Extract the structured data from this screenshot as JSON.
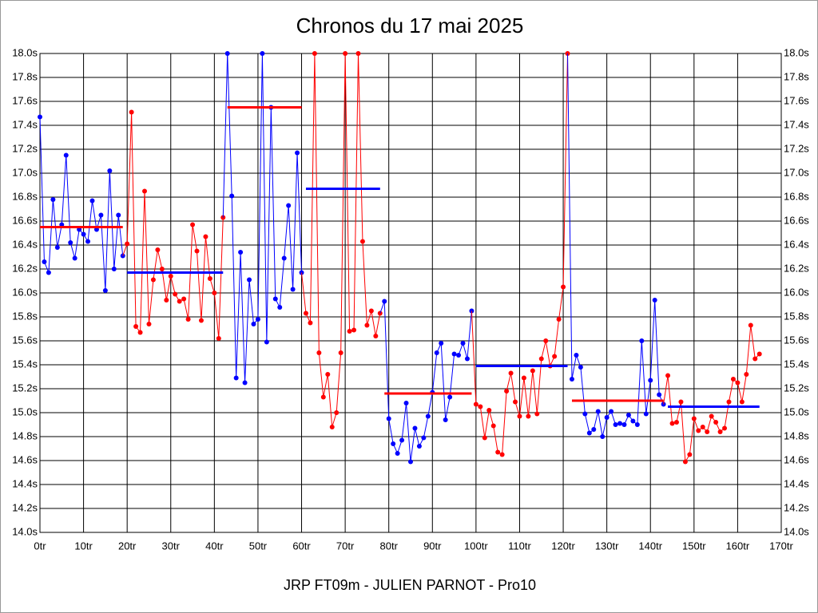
{
  "chart_data": {
    "type": "line",
    "title": "Chronos du 17 mai 2025",
    "footer": "JRP FT09m - JULIEN PARNOT - Pro10",
    "xlim": [
      0,
      170
    ],
    "xticks": [
      {
        "value": 0,
        "label": "0tr"
      },
      {
        "value": 10,
        "label": "10tr"
      },
      {
        "value": 20,
        "label": "20tr"
      },
      {
        "value": 30,
        "label": "30tr"
      },
      {
        "value": 40,
        "label": "40tr"
      },
      {
        "value": 50,
        "label": "50tr"
      },
      {
        "value": 60,
        "label": "60tr"
      },
      {
        "value": 70,
        "label": "70tr"
      },
      {
        "value": 80,
        "label": "80tr"
      },
      {
        "value": 90,
        "label": "90tr"
      },
      {
        "value": 100,
        "label": "100tr"
      },
      {
        "value": 110,
        "label": "110tr"
      },
      {
        "value": 120,
        "label": "120tr"
      },
      {
        "value": 130,
        "label": "130tr"
      },
      {
        "value": 140,
        "label": "140tr"
      },
      {
        "value": 150,
        "label": "150tr"
      },
      {
        "value": 160,
        "label": "160tr"
      },
      {
        "value": 170,
        "label": "170tr"
      }
    ],
    "ylim": [
      14,
      18
    ],
    "yticks": [
      {
        "value": 14,
        "label": "14.0s"
      },
      {
        "value": 14.2,
        "label": "14.2s"
      },
      {
        "value": 14.4,
        "label": "14.4s"
      },
      {
        "value": 14.6,
        "label": "14.6s"
      },
      {
        "value": 14.8,
        "label": "14.8s"
      },
      {
        "value": 15,
        "label": "15.0s"
      },
      {
        "value": 15.2,
        "label": "15.2s"
      },
      {
        "value": 15.4,
        "label": "15.4s"
      },
      {
        "value": 15.6,
        "label": "15.6s"
      },
      {
        "value": 15.8,
        "label": "15.8s"
      },
      {
        "value": 16,
        "label": "16.0s"
      },
      {
        "value": 16.2,
        "label": "16.2s"
      },
      {
        "value": 16.4,
        "label": "16.4s"
      },
      {
        "value": 16.6,
        "label": "16.6s"
      },
      {
        "value": 16.8,
        "label": "16.8s"
      },
      {
        "value": 17,
        "label": "17.0s"
      },
      {
        "value": 17.2,
        "label": "17.2s"
      },
      {
        "value": 17.4,
        "label": "17.4s"
      },
      {
        "value": 17.6,
        "label": "17.6s"
      },
      {
        "value": 17.8,
        "label": "17.8s"
      },
      {
        "value": 18,
        "label": "18.0s"
      }
    ],
    "grid": true,
    "series": [
      {
        "color": "#0000ff",
        "x": [
          0,
          1,
          2,
          3,
          4,
          5,
          6,
          7,
          8,
          9,
          10,
          11,
          12,
          13,
          14,
          15,
          16,
          17,
          18,
          19
        ],
        "values": [
          17.47,
          16.26,
          16.17,
          16.78,
          16.38,
          16.57,
          17.15,
          16.42,
          16.29,
          16.53,
          16.49,
          16.43,
          16.77,
          16.53,
          16.65,
          16.02,
          17.02,
          16.2,
          16.65,
          16.31
        ]
      },
      {
        "color": "#ff0000",
        "x": [
          20,
          21,
          22,
          23,
          24,
          25,
          26,
          27,
          28,
          29,
          30,
          31,
          32,
          33,
          34,
          35,
          36,
          37,
          38,
          39,
          40,
          41,
          42
        ],
        "values": [
          16.41,
          17.51,
          15.72,
          15.67,
          16.85,
          15.74,
          16.11,
          16.36,
          16.2,
          15.94,
          16.14,
          15.99,
          15.93,
          15.95,
          15.78,
          16.57,
          16.35,
          15.77,
          16.47,
          16.12,
          16.0,
          15.62,
          16.63
        ]
      },
      {
        "color": "#0000ff",
        "x": [
          43,
          44,
          45,
          46,
          47,
          48,
          49,
          50,
          51,
          52,
          53,
          54,
          55,
          56,
          57,
          58,
          59,
          60
        ],
        "values": [
          18.0,
          16.81,
          15.29,
          16.34,
          15.25,
          16.11,
          15.74,
          15.78,
          18.0,
          15.59,
          17.55,
          15.95,
          15.88,
          16.29,
          16.73,
          16.03,
          17.17,
          16.17
        ]
      },
      {
        "color": "#ff0000",
        "x": [
          61,
          62,
          63,
          64,
          65,
          66,
          67,
          68,
          69,
          70,
          71,
          72,
          73,
          74,
          75,
          76,
          77,
          78
        ],
        "values": [
          15.83,
          15.75,
          18.0,
          15.5,
          15.13,
          15.32,
          14.88,
          15.0,
          15.5,
          18.0,
          15.68,
          15.69,
          18.0,
          16.43,
          15.73,
          15.85,
          15.64,
          15.83
        ]
      },
      {
        "color": "#0000ff",
        "x": [
          79,
          80,
          81,
          82,
          83,
          84,
          85,
          86,
          87,
          88,
          89,
          90,
          91,
          92,
          93,
          94,
          95,
          96,
          97,
          98,
          99
        ],
        "values": [
          15.93,
          14.95,
          14.74,
          14.66,
          14.77,
          15.08,
          14.59,
          14.87,
          14.72,
          14.79,
          14.97,
          15.17,
          15.5,
          15.58,
          14.94,
          15.13,
          15.49,
          15.48,
          15.58,
          15.45,
          15.85
        ]
      },
      {
        "color": "#ff0000",
        "x": [
          100,
          101,
          102,
          103,
          104,
          105,
          106,
          107,
          108,
          109,
          110,
          111,
          112,
          113,
          114,
          115,
          116,
          117,
          118,
          119,
          120,
          121
        ],
        "values": [
          15.07,
          15.05,
          14.79,
          15.02,
          14.89,
          14.67,
          14.65,
          15.18,
          15.33,
          15.09,
          14.97,
          15.29,
          14.97,
          15.35,
          14.99,
          15.45,
          15.6,
          15.39,
          15.47,
          15.78,
          16.05,
          18.0
        ]
      },
      {
        "color": "#0000ff",
        "x": [
          122,
          123,
          124,
          125,
          126,
          127,
          128,
          129,
          130,
          131,
          132,
          133,
          134,
          135,
          136,
          137,
          138,
          139,
          140,
          141,
          142,
          143
        ],
        "values": [
          15.28,
          15.48,
          15.38,
          14.99,
          14.83,
          14.86,
          15.01,
          14.8,
          14.96,
          15.01,
          14.9,
          14.91,
          14.9,
          14.98,
          14.93,
          14.9,
          15.6,
          14.99,
          15.27,
          15.94,
          15.15,
          15.07
        ]
      },
      {
        "color": "#ff0000",
        "x": [
          144,
          145,
          146,
          147,
          148,
          149,
          150,
          151,
          152,
          153,
          154,
          155,
          156,
          157,
          158,
          159,
          160,
          161,
          162,
          163,
          164,
          165
        ],
        "values": [
          15.31,
          14.91,
          14.92,
          15.09,
          14.59,
          14.65,
          14.95,
          14.85,
          14.88,
          14.84,
          14.97,
          14.92,
          14.84,
          14.87,
          15.09,
          15.28,
          15.25,
          15.09,
          15.32,
          15.73,
          15.45,
          15.49
        ]
      }
    ],
    "averages": [
      {
        "color": "#ff0000",
        "x": [
          0,
          19
        ],
        "value": 16.55
      },
      {
        "color": "#0000ff",
        "x": [
          20,
          42
        ],
        "value": 16.17
      },
      {
        "color": "#ff0000",
        "x": [
          43,
          60
        ],
        "value": 17.55
      },
      {
        "color": "#0000ff",
        "x": [
          61,
          78
        ],
        "value": 16.87
      },
      {
        "color": "#ff0000",
        "x": [
          79,
          99
        ],
        "value": 15.16
      },
      {
        "color": "#0000ff",
        "x": [
          100,
          121
        ],
        "value": 15.39
      },
      {
        "color": "#ff0000",
        "x": [
          122,
          143
        ],
        "value": 15.1
      },
      {
        "color": "#0000ff",
        "x": [
          144,
          165
        ],
        "value": 15.05
      }
    ]
  }
}
